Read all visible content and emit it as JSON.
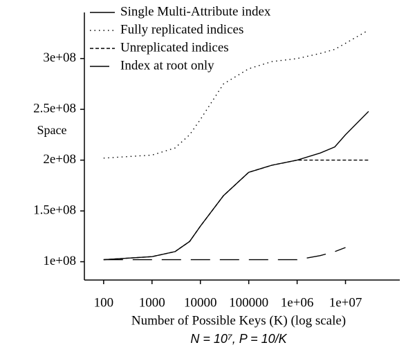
{
  "chart_data": {
    "type": "line",
    "y_label": "Space",
    "x_label": "Number of Possible Keys (K) (log scale)",
    "annotation": "N = 10⁷,  P = 10/K",
    "x": [
      100,
      1000,
      3000,
      6000,
      10000,
      30000,
      100000,
      300000,
      1000000,
      3000000,
      6000000,
      10000000,
      30000000
    ],
    "series": [
      {
        "name": "Single Multi-Attribute index",
        "color": "#000000",
        "dash": "solid",
        "values": [
          102000000,
          105000000,
          110000000,
          120000000,
          135000000,
          165000000,
          188000000,
          195000000,
          200000000,
          207000000,
          213000000,
          225000000,
          248000000
        ]
      },
      {
        "name": "Fully replicated indices",
        "color": "#000000",
        "dash": "dotted",
        "values": [
          202000000,
          205000000,
          212000000,
          225000000,
          240000000,
          275000000,
          290000000,
          297000000,
          300000000,
          305000000,
          309000000,
          315000000,
          328000000
        ]
      },
      {
        "name": "Unreplicated indices",
        "color": "#000000",
        "dash": "dashed",
        "values": [
          102000000,
          105000000,
          110000000,
          120000000,
          135000000,
          165000000,
          188000000,
          195000000,
          200000000,
          200000000,
          200000000,
          200000000,
          200000000
        ]
      },
      {
        "name": "Index at root only",
        "color": "#000000",
        "dash": "longdash",
        "values": [
          102000000,
          102000000,
          102000000,
          102000000,
          102000000,
          102000000,
          102000000,
          102000000,
          102000000,
          106000000,
          110000000,
          114000000,
          null
        ]
      }
    ],
    "xscale": "log",
    "xlim": [
      40,
      120000000
    ],
    "xticks": [
      100,
      1000,
      10000,
      100000,
      {
        "value": 1000000,
        "label": "1e+06"
      },
      {
        "value": 10000000,
        "label": "1e+07"
      }
    ],
    "ylim": [
      82000000,
      344000000
    ],
    "yticks": [
      {
        "value": 100000000,
        "label": "1e+08"
      },
      {
        "value": 150000000,
        "label": "1.5e+08"
      },
      {
        "value": 200000000,
        "label": "2e+08"
      },
      {
        "value": 250000000,
        "label": "2.5e+08"
      },
      {
        "value": 300000000,
        "label": "3e+08"
      }
    ],
    "legend": "top-left"
  }
}
